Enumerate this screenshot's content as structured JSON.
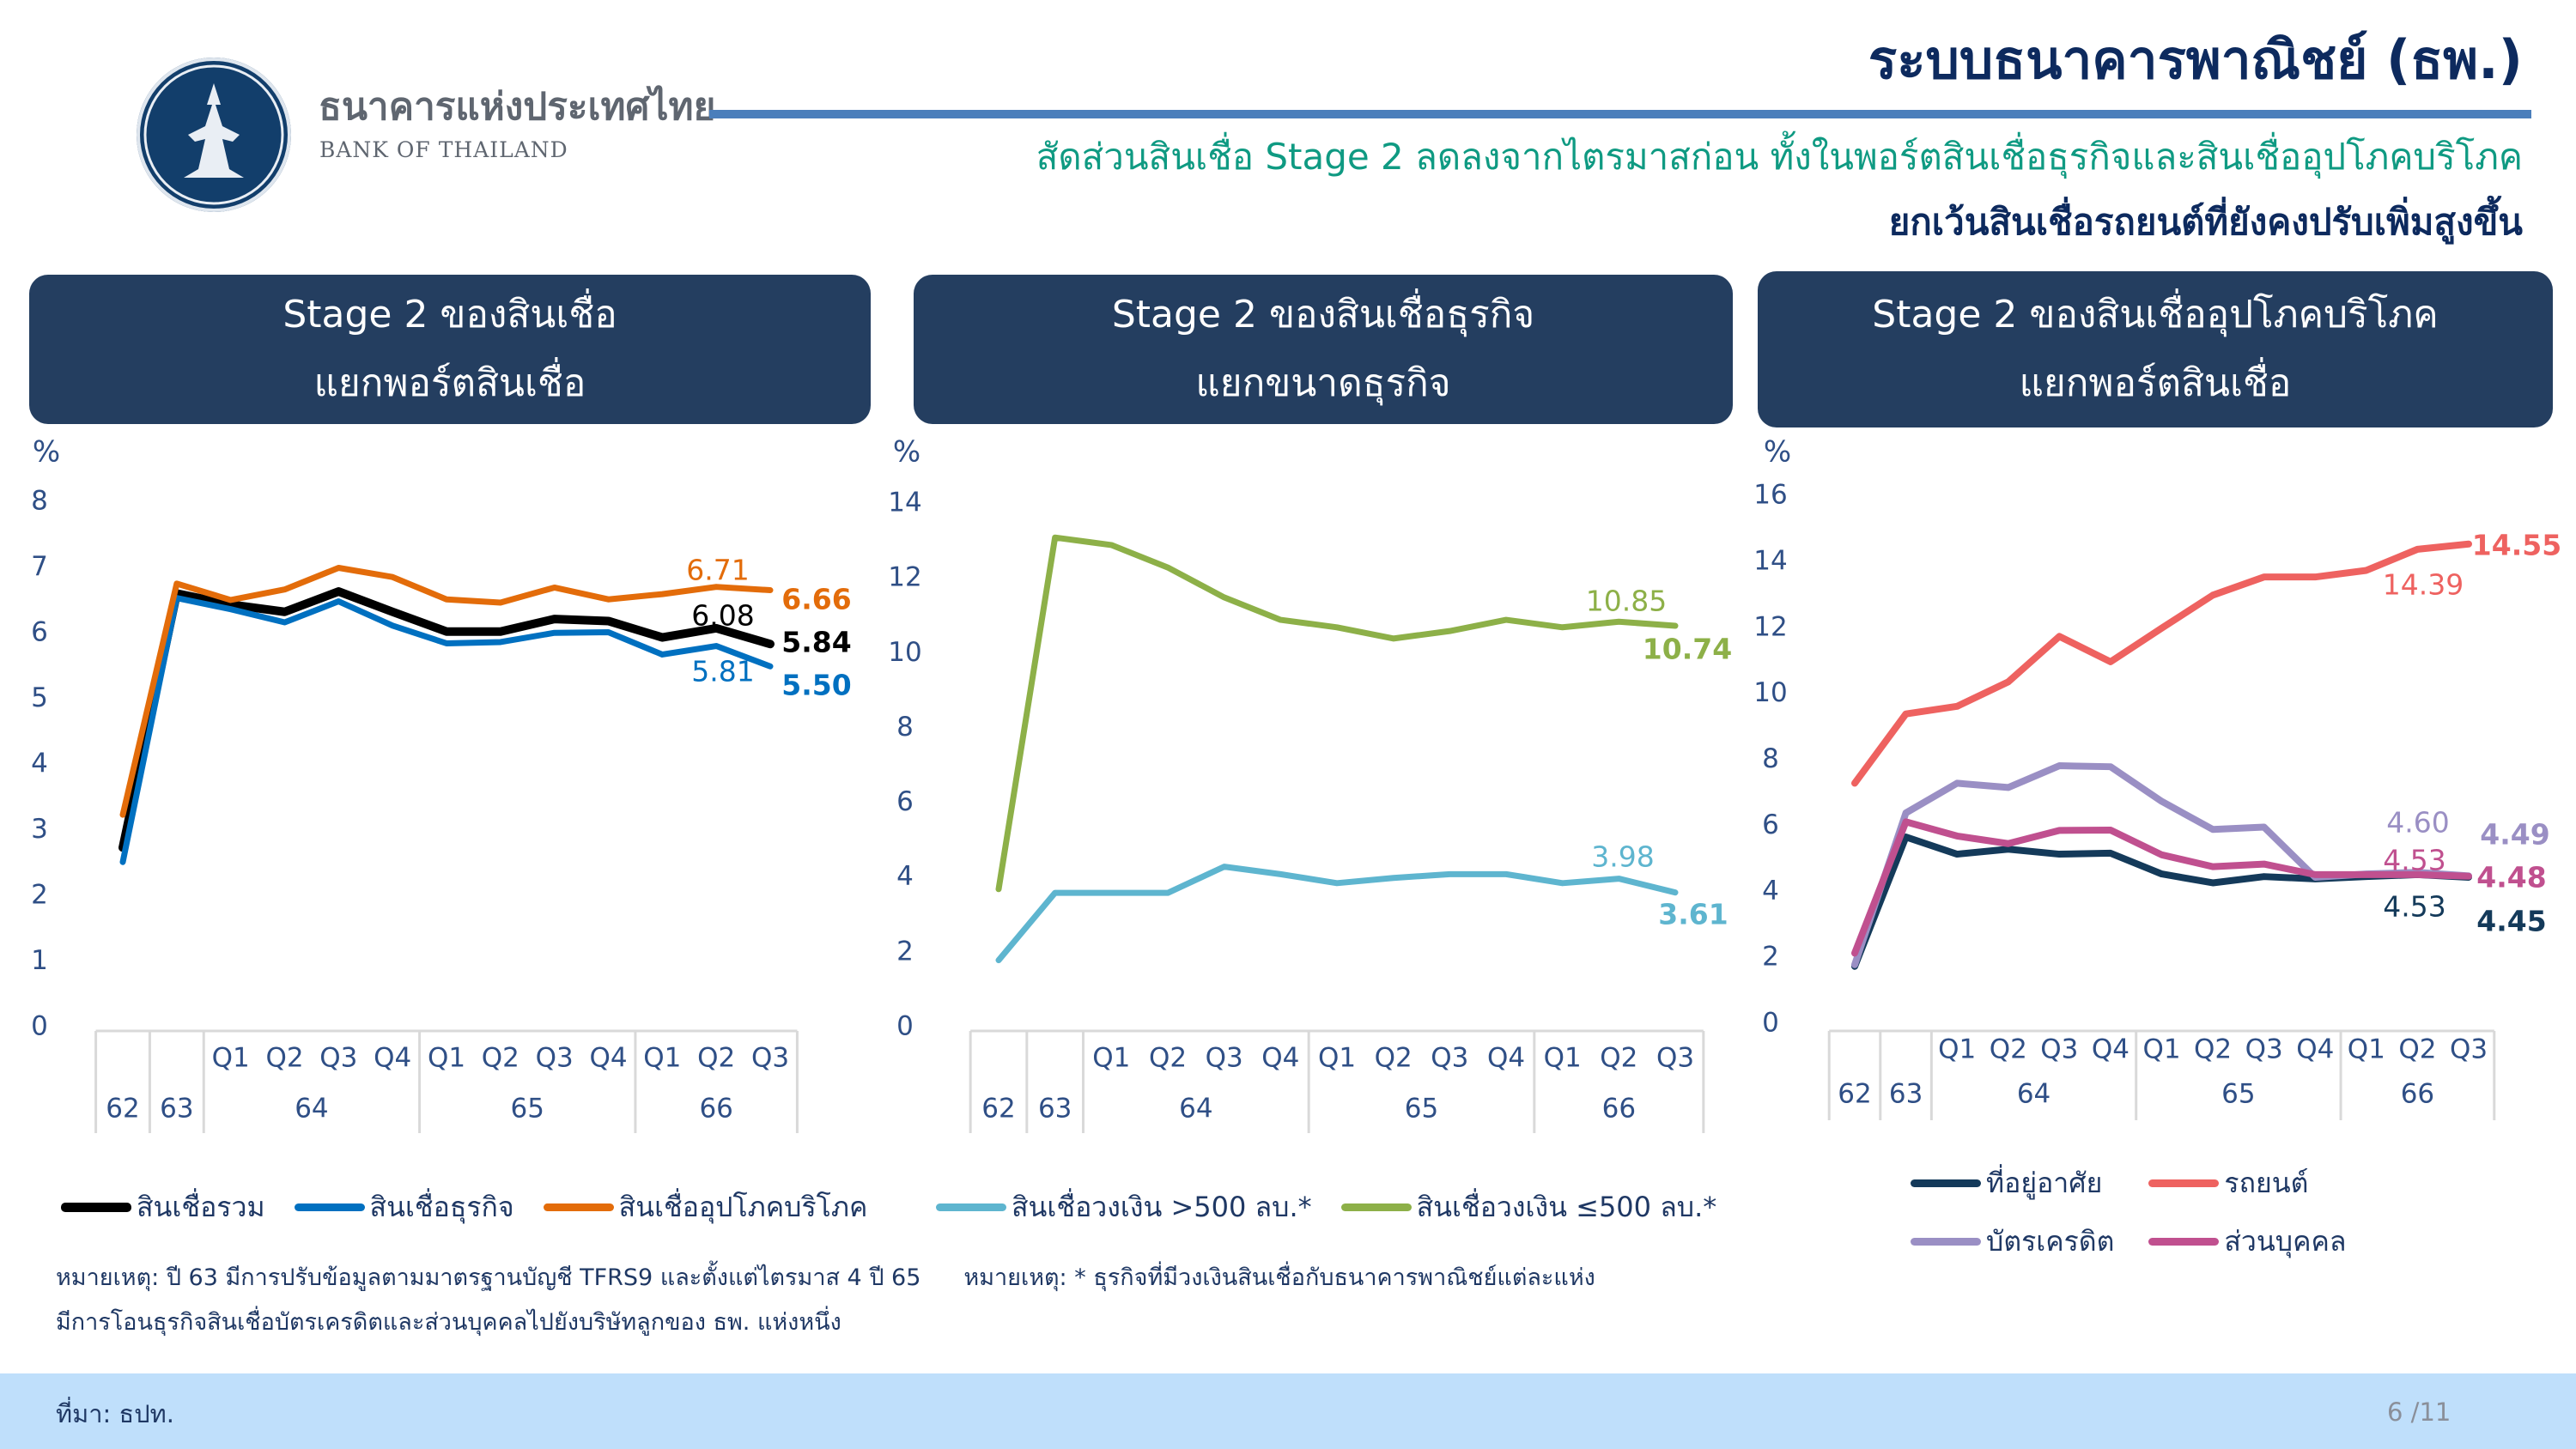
{
  "header": {
    "bank_name_th": "ธนาคารแห่งประเทศไทย",
    "bank_name_en": "BANK OF THAILAND",
    "title": "ระบบธนาคารพาณิชย์ (ธพ.)",
    "subtitle_line1": "สัดส่วนสินเชื่อ Stage 2 ลดลงจากไตรมาสก่อน ทั้งในพอร์ตสินเชื่อธุรกิจและสินเชื่ออุปโภคบริโภค",
    "subtitle_line2": "ยกเว้นสินเชื่อรถยนต์ที่ยังคงปรับเพิ่มสูงขึ้น",
    "accent_color": "#4a7ebb",
    "subtitle_color": "#0f9a82"
  },
  "panels": [
    {
      "line1": "Stage 2 ของสินเชื่อ",
      "line2": "แยกพอร์ตสินเชื่อ"
    },
    {
      "line1": "Stage 2 ของสินเชื่อธุรกิจ",
      "line2": "แยกขนาดธุรกิจ"
    },
    {
      "line1": "Stage 2 ของสินเชื่ออุปโภคบริโภค",
      "line2": "แยกพอร์ตสินเชื่อ"
    }
  ],
  "chart_data": [
    {
      "type": "line",
      "ylabel": "%",
      "ylim": [
        0,
        8
      ],
      "yticks": [
        "0",
        "1",
        "2",
        "3",
        "4",
        "5",
        "6",
        "7",
        "8"
      ],
      "grid": false,
      "legend": "bottom",
      "quarter_labels": [
        "",
        "",
        "Q1",
        "Q2",
        "Q3",
        "Q4",
        "Q1",
        "Q2",
        "Q3",
        "Q4",
        "Q1",
        "Q2",
        "Q3"
      ],
      "year_groups": [
        {
          "label": "62",
          "span": 1
        },
        {
          "label": "63",
          "span": 1
        },
        {
          "label": "64",
          "span": 4
        },
        {
          "label": "65",
          "span": 4
        },
        {
          "label": "66",
          "span": 3
        }
      ],
      "series": [
        {
          "name": "สินเชื่อรวม",
          "color": "#000000",
          "values": [
            2.74,
            6.61,
            6.44,
            6.33,
            6.64,
            6.33,
            6.03,
            6.03,
            6.22,
            6.19,
            5.94,
            6.08,
            5.84
          ],
          "labels": [
            {
              "index": 11,
              "text": "6.08"
            },
            {
              "index": 12,
              "text": "5.84"
            }
          ]
        },
        {
          "name": "สินเชื่อธุรกิจ",
          "color": "#0070c0",
          "values": [
            2.52,
            6.54,
            6.37,
            6.17,
            6.49,
            6.12,
            5.85,
            5.87,
            6.01,
            6.02,
            5.68,
            5.81,
            5.5
          ],
          "labels": [
            {
              "index": 11,
              "text": "5.81"
            },
            {
              "index": 12,
              "text": "5.50"
            }
          ]
        },
        {
          "name": "สินเชื่ออุปโภคบริโภค",
          "color": "#e36c0a",
          "values": [
            3.24,
            6.76,
            6.51,
            6.67,
            7.0,
            6.86,
            6.52,
            6.47,
            6.7,
            6.52,
            6.6,
            6.71,
            6.66
          ],
          "labels": [
            {
              "index": 11,
              "text": "6.71"
            },
            {
              "index": 12,
              "text": "6.66"
            }
          ]
        }
      ]
    },
    {
      "type": "line",
      "ylabel": "%",
      "ylim": [
        0,
        14
      ],
      "yticks": [
        "0",
        "2",
        "4",
        "6",
        "8",
        "10",
        "12",
        "14"
      ],
      "grid": false,
      "legend": "bottom",
      "quarter_labels": [
        "",
        "",
        "Q1",
        "Q2",
        "Q3",
        "Q4",
        "Q1",
        "Q2",
        "Q3",
        "Q4",
        "Q1",
        "Q2",
        "Q3"
      ],
      "year_groups": [
        {
          "label": "62",
          "span": 1
        },
        {
          "label": "63",
          "span": 1
        },
        {
          "label": "64",
          "span": 4
        },
        {
          "label": "65",
          "span": 4
        },
        {
          "label": "66",
          "span": 3
        }
      ],
      "series": [
        {
          "name": "สินเชื่อวงเงิน >500 ลบ.*",
          "color": "#5eb5cf",
          "values": [
            1.8,
            3.6,
            3.6,
            3.6,
            4.3,
            4.1,
            3.86,
            4.0,
            4.1,
            4.1,
            3.86,
            3.98,
            3.61
          ],
          "labels": [
            {
              "index": 11,
              "text": "3.98"
            },
            {
              "index": 12,
              "text": "3.61"
            }
          ]
        },
        {
          "name": "สินเชื่อวงเงิน ≤500 ลบ.*",
          "color": "#8db048",
          "values": [
            3.7,
            13.1,
            12.9,
            12.3,
            11.5,
            10.9,
            10.7,
            10.4,
            10.6,
            10.9,
            10.7,
            10.85,
            10.74
          ],
          "labels": [
            {
              "index": 11,
              "text": "10.85"
            },
            {
              "index": 12,
              "text": "10.74"
            }
          ]
        }
      ]
    },
    {
      "type": "line",
      "ylabel": "%",
      "ylim": [
        0,
        16
      ],
      "yticks": [
        "0",
        "2",
        "4",
        "6",
        "8",
        "10",
        "12",
        "14",
        "16"
      ],
      "grid": false,
      "legend": "bottom",
      "quarter_labels": [
        "",
        "",
        "Q1",
        "Q2",
        "Q3",
        "Q4",
        "Q1",
        "Q2",
        "Q3",
        "Q4",
        "Q1",
        "Q2",
        "Q3"
      ],
      "year_groups": [
        {
          "label": "62",
          "span": 1
        },
        {
          "label": "63",
          "span": 1
        },
        {
          "label": "64",
          "span": 4
        },
        {
          "label": "65",
          "span": 4
        },
        {
          "label": "66",
          "span": 3
        }
      ],
      "series": [
        {
          "name": "ที่อยู่อาศัย",
          "color": "#143a5a",
          "values": [
            1.75,
            5.67,
            5.15,
            5.3,
            5.15,
            5.18,
            4.55,
            4.28,
            4.47,
            4.4,
            4.47,
            4.53,
            4.45
          ],
          "labels": [
            {
              "index": 11,
              "text": "4.53"
            },
            {
              "index": 12,
              "text": "4.45"
            }
          ]
        },
        {
          "name": "รถยนต์",
          "color": "#ee6260",
          "values": [
            7.3,
            9.4,
            9.63,
            10.37,
            11.75,
            10.98,
            12.0,
            13.0,
            13.55,
            13.55,
            13.75,
            14.39,
            14.55
          ],
          "labels": [
            {
              "index": 11,
              "text": "14.39"
            },
            {
              "index": 12,
              "text": "14.55"
            }
          ]
        },
        {
          "name": "บัตรเครดิต",
          "color": "#9a8fc4",
          "values": [
            1.8,
            6.4,
            7.3,
            7.17,
            7.83,
            7.8,
            6.75,
            5.9,
            5.97,
            4.45,
            4.55,
            4.6,
            4.49
          ],
          "labels": [
            {
              "index": 11,
              "text": "4.60"
            },
            {
              "index": 12,
              "text": "4.49"
            }
          ]
        },
        {
          "name": "ส่วนบุคคล",
          "color": "#c0508f",
          "values": [
            2.15,
            6.13,
            5.7,
            5.47,
            5.87,
            5.88,
            5.13,
            4.77,
            4.85,
            4.53,
            4.53,
            4.53,
            4.48
          ],
          "labels": [
            {
              "index": 11,
              "text": "4.53"
            },
            {
              "index": 12,
              "text": "4.48"
            }
          ]
        }
      ]
    }
  ],
  "notes": {
    "note1_line1": "หมายเหตุ: ปี 63 มีการปรับข้อมูลตามมาตรฐานบัญชี TFRS9 และตั้งแต่ไตรมาส 4 ปี 65",
    "note1_line2": "มีการโอนธุรกิจสินเชื่อบัตรเครดิตและส่วนบุคคลไปยังบริษัทลูกของ ธพ. แห่งหนึ่ง",
    "note2": "หมายเหตุ: * ธุรกิจที่มีวงเงินสินเชื่อกับธนาคารพาณิชย์แต่ละแห่ง"
  },
  "footer": {
    "source": "ที่มา: ธปท.",
    "page": "6 /11"
  }
}
